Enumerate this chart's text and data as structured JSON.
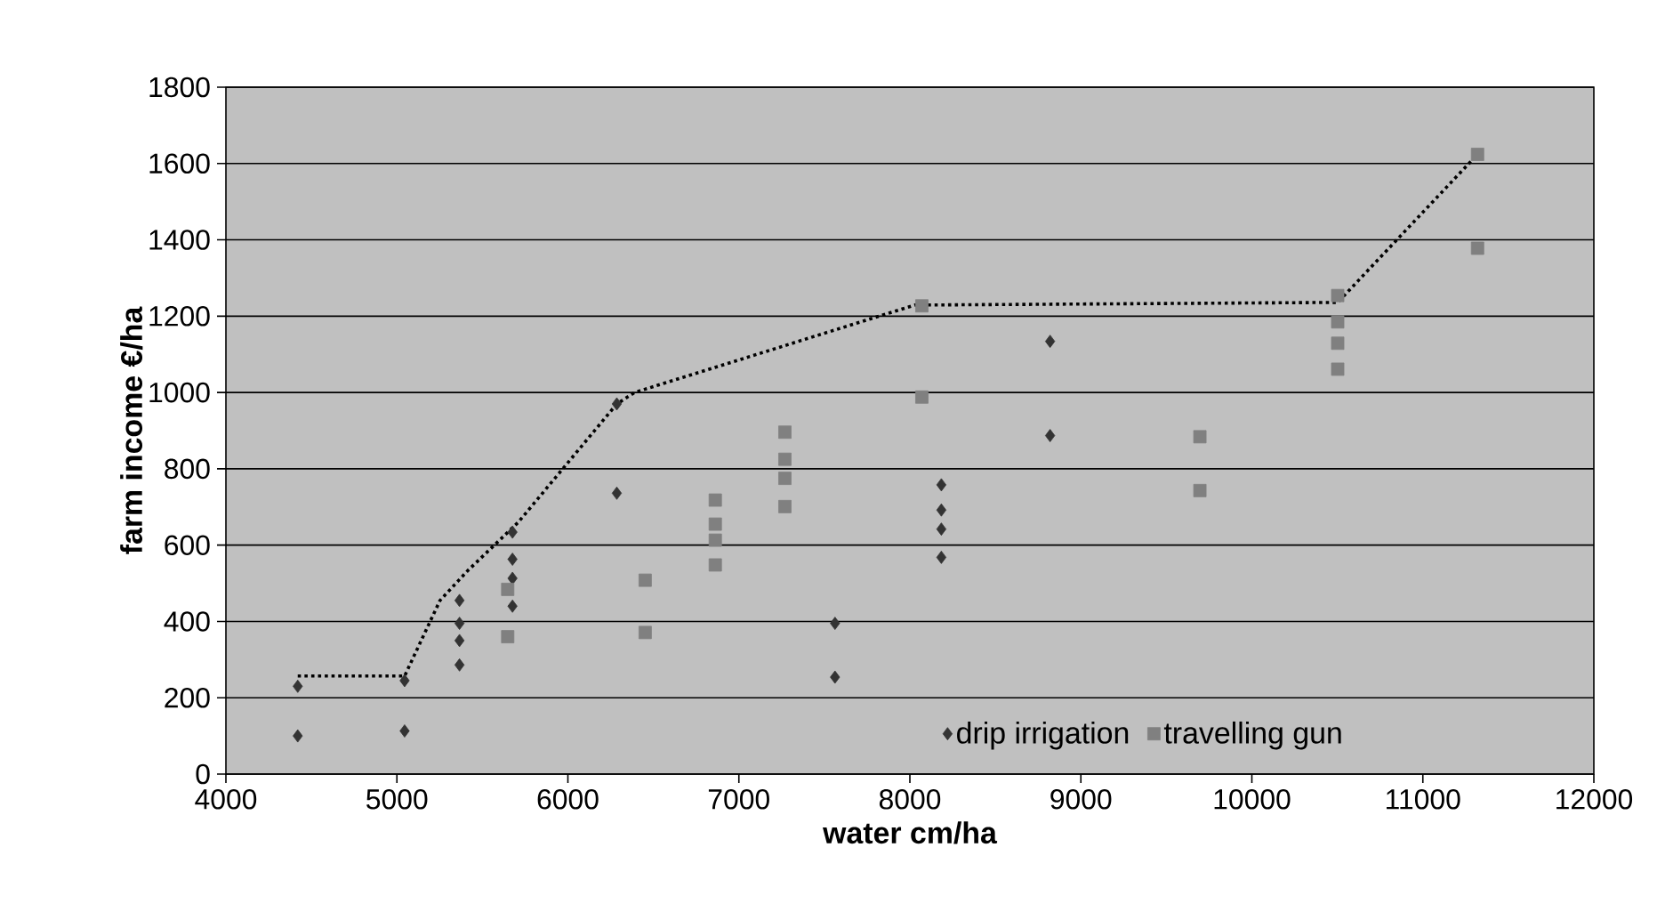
{
  "chart_data": {
    "type": "scatter",
    "xlabel": "water cm/ha",
    "ylabel": "farm income €/ha",
    "xlim": [
      4000,
      12000
    ],
    "xticks": [
      4000,
      5000,
      6000,
      7000,
      8000,
      9000,
      10000,
      11000,
      12000
    ],
    "ylim": [
      0,
      1800
    ],
    "yticks": [
      0,
      200,
      400,
      600,
      800,
      1000,
      1200,
      1400,
      1600,
      1800
    ],
    "grid": "y",
    "legend": "bottom right",
    "series": [
      {
        "name": "drip irrigation",
        "color": "#333333",
        "marker": "diamond",
        "x": [
          4420,
          4420,
          5045,
          5045,
          5366,
          5366,
          5366,
          5366,
          5676,
          5676,
          5676,
          5676,
          6286,
          6286,
          7562,
          7562,
          8184,
          8184,
          8184,
          8184,
          8820,
          8820
        ],
        "values": [
          230,
          100,
          245,
          113,
          455,
          395,
          350,
          286,
          634,
          563,
          513,
          440,
          970,
          736,
          395,
          254,
          758,
          692,
          642,
          568,
          1134,
          887
        ]
      },
      {
        "name": "travelling gun",
        "color": "#808080",
        "marker": "square",
        "x": [
          5648,
          5648,
          6452,
          6452,
          6862,
          6862,
          6862,
          6862,
          7269,
          7269,
          7269,
          7269,
          8070,
          8070,
          9696,
          9696,
          10502,
          10502,
          10502,
          10502,
          11320,
          11320
        ],
        "values": [
          484,
          360,
          508,
          371,
          718,
          655,
          613,
          548,
          896,
          825,
          775,
          701,
          1227,
          988,
          884,
          743,
          1254,
          1185,
          1129,
          1061,
          1624,
          1378
        ]
      },
      {
        "type": "line",
        "color": "#000000",
        "marker": "none",
        "line_style": "dotted",
        "x": [
          4420,
          5045,
          5252,
          5414,
          5710,
          6286,
          6390,
          8028,
          10502,
          11320
        ],
        "values": [
          257,
          257,
          455,
          533,
          660,
          970,
          1000,
          1229,
          1236,
          1624
        ]
      }
    ]
  }
}
